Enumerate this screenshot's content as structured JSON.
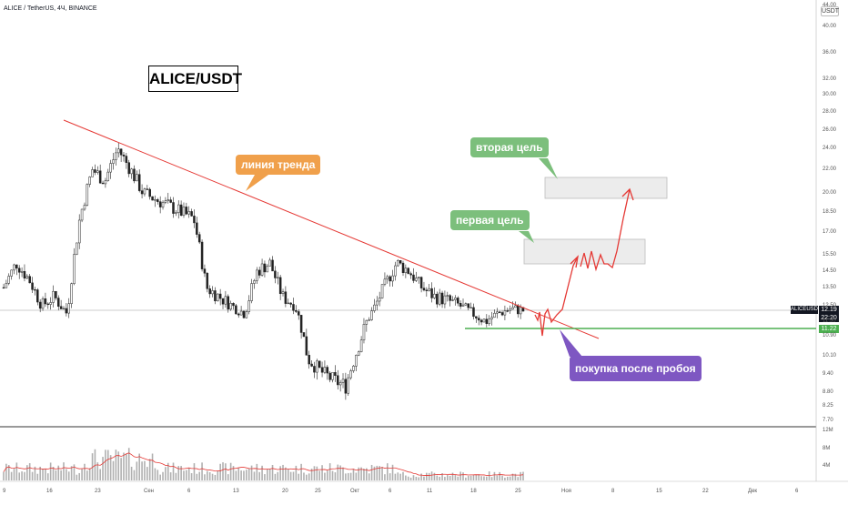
{
  "header": {
    "text": "ALICE / TetherUS, 4Ч, BINANCE"
  },
  "currency_badge": "USDT",
  "title_box": "ALICE/USDT",
  "annotations": {
    "trend_line": "линия тренда",
    "second_target": "вторая цель",
    "first_target": "первая цель",
    "buy_after_breakout": "покупка после пробоя"
  },
  "price_axis_labels": [
    "44.00",
    "40.00",
    "36.00",
    "32.00",
    "30.00",
    "28.00",
    "26.00",
    "24.00",
    "22.00",
    "20.00",
    "18.50",
    "17.00",
    "15.50",
    "14.50",
    "13.50",
    "12.50",
    "11.50",
    "10.90",
    "10.10",
    "9.40",
    "8.80",
    "8.25",
    "7.70"
  ],
  "volume_axis_labels": [
    "12M",
    "8M",
    "4M"
  ],
  "time_axis_labels": [
    "9",
    "16",
    "23",
    "Сен",
    "6",
    "13",
    "20",
    "25",
    "Окт",
    "6",
    "11",
    "18",
    "25",
    "Ноя",
    "8",
    "15",
    "22",
    "Дек",
    "6"
  ],
  "last_price": {
    "symbol": "ALICEUSDT",
    "value": "12.19",
    "time": "22:20"
  },
  "support_level": "11.22",
  "colors": {
    "trend": "#e53935",
    "support": "#4caf50",
    "orange": "#f0a04b",
    "green": "#7cbf7c",
    "purple": "#7e57c2",
    "arrow": "#e53935"
  },
  "chart_data": {
    "type": "candlestick",
    "symbol": "ALICE/USDT",
    "ylim": [
      7.7,
      44.0
    ],
    "support": 11.22,
    "targets": [
      {
        "label": "первая цель",
        "low": 14.5,
        "high": 16.2
      },
      {
        "label": "вторая цель",
        "low": 19.5,
        "high": 21.5
      }
    ],
    "closes_approx": [
      13.5,
      15.0,
      14.0,
      12.5,
      13.0,
      12.0,
      18.0,
      22.0,
      21.0,
      24.0,
      22.0,
      20.0,
      19.5,
      19.0,
      18.5,
      18.0,
      13.5,
      13.0,
      12.5,
      12.0,
      14.5,
      15.0,
      13.0,
      12.5,
      10.0,
      9.5,
      9.2,
      9.0,
      10.5,
      12.0,
      13.5,
      15.0,
      14.5,
      13.5,
      13.0,
      12.8,
      12.5,
      12.0,
      11.5,
      12.0,
      12.3,
      12.2
    ]
  }
}
